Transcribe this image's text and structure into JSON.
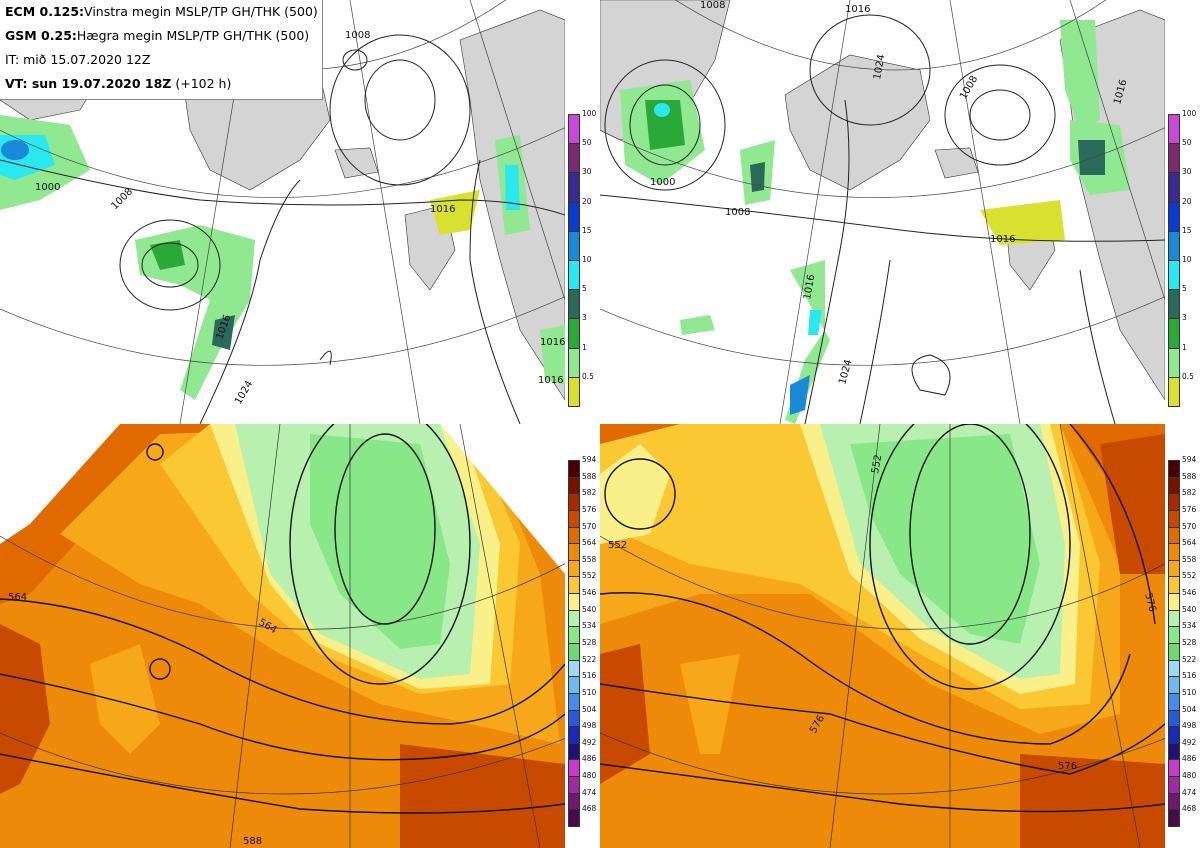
{
  "header": {
    "line1_bold": "ECM 0.125:",
    "line1_text": "Vinstra megin MSLP/TP GH/THK (500)",
    "line2_bold": "GSM 0.25:",
    "line2_text": "Hægra megin MSLP/TP GH/THK (500)",
    "line3": "IT: mið 15.07.2020 12Z",
    "line4_bold": "VT: sun 19.07.2020 18Z",
    "line4_text": "(+102 h)"
  },
  "precip_scale": {
    "labels": [
      "100",
      "50",
      "30",
      "20",
      "15",
      "10",
      "5",
      "3",
      "1",
      "0.5"
    ],
    "colors": [
      "#c849d8",
      "#7a2a6e",
      "#3a2a90",
      "#0a3ad0",
      "#1a8ad8",
      "#2ae8f0",
      "#2a6a5a",
      "#2aa838",
      "#90e890",
      "#d8e030"
    ]
  },
  "thickness_scale": {
    "labels": [
      "594",
      "588",
      "582",
      "576",
      "570",
      "564",
      "558",
      "552",
      "546",
      "540",
      "534",
      "528",
      "522",
      "516",
      "510",
      "504",
      "498",
      "492",
      "486",
      "480",
      "474",
      "468"
    ],
    "colors": [
      "#4a0000",
      "#7a1200",
      "#a82800",
      "#c84a00",
      "#e06a00",
      "#ee8a0a",
      "#f6a81a",
      "#fac832",
      "#faf08a",
      "#b8f0b0",
      "#88e888",
      "#70d870",
      "#a0d8f8",
      "#70b8f0",
      "#4a8ae8",
      "#2a5ad8",
      "#1a2ab8",
      "#20107a",
      "#c83ac8",
      "#a02aa0",
      "#701870",
      "#480a48"
    ]
  },
  "maps": {
    "ecm_mslp": {
      "contour_labels": [
        "1008",
        "1008",
        "1000",
        "1016",
        "1016",
        "1024",
        "1016",
        "1016"
      ]
    },
    "gsm_mslp": {
      "contour_labels": [
        "1008",
        "1016",
        "1024",
        "1008",
        "1000",
        "1008",
        "1016",
        "1016",
        "1024",
        "1016"
      ]
    },
    "ecm_thk": {
      "contour_labels": [
        "564",
        "564",
        "588"
      ]
    },
    "gsm_thk": {
      "contour_labels": [
        "552",
        "552",
        "576",
        "576",
        "576"
      ]
    }
  }
}
